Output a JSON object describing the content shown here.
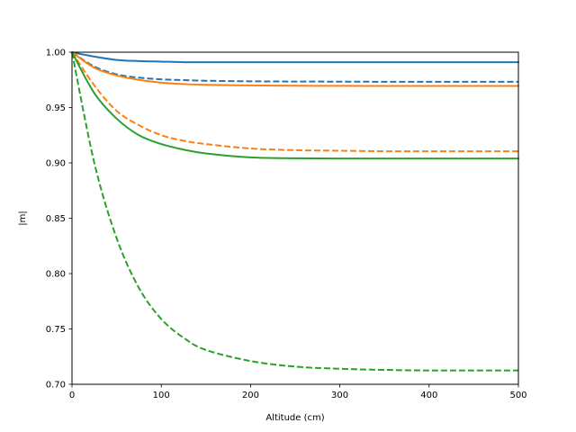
{
  "chart_data": {
    "type": "line",
    "title": "",
    "xlabel": "Altitude (cm)",
    "ylabel": "|m|",
    "xlim": [
      0,
      500
    ],
    "ylim": [
      0.7,
      1.0
    ],
    "xticks": [
      0,
      100,
      200,
      300,
      400,
      500
    ],
    "xtick_labels": [
      "0",
      "100",
      "200",
      "300",
      "400",
      "500"
    ],
    "yticks": [
      0.7,
      0.75,
      0.8,
      0.85,
      0.9,
      0.95,
      1.0
    ],
    "ytick_labels": [
      "0.70",
      "0.75",
      "0.80",
      "0.85",
      "0.90",
      "0.95",
      "1.00"
    ],
    "grid": false,
    "legend": "none",
    "x": [
      0,
      25,
      50,
      75,
      100,
      125,
      150,
      200,
      250,
      300,
      350,
      400,
      450,
      500
    ],
    "series": [
      {
        "color": "#1f77b4",
        "style": "solid",
        "values": [
          1.0,
          0.996,
          0.993,
          0.992,
          0.9915,
          0.991,
          0.991,
          0.991,
          0.991,
          0.991,
          0.991,
          0.991,
          0.991,
          0.991
        ]
      },
      {
        "color": "#1f77b4",
        "style": "dashed",
        "values": [
          1.0,
          0.987,
          0.98,
          0.977,
          0.9755,
          0.9748,
          0.9742,
          0.9737,
          0.9735,
          0.9734,
          0.9733,
          0.9733,
          0.9733,
          0.9733
        ]
      },
      {
        "color": "#ff7f0e",
        "style": "solid",
        "values": [
          1.0,
          0.986,
          0.979,
          0.975,
          0.9725,
          0.9712,
          0.9705,
          0.97,
          0.9697,
          0.9696,
          0.9695,
          0.9695,
          0.9695,
          0.9695
        ]
      },
      {
        "color": "#ff7f0e",
        "style": "dashed",
        "values": [
          1.0,
          0.97,
          0.947,
          0.934,
          0.925,
          0.92,
          0.917,
          0.913,
          0.9115,
          0.911,
          0.9105,
          0.9105,
          0.9105,
          0.9105
        ]
      },
      {
        "color": "#2ca02c",
        "style": "solid",
        "values": [
          1.0,
          0.963,
          0.94,
          0.925,
          0.917,
          0.912,
          0.9085,
          0.905,
          0.9042,
          0.904,
          0.904,
          0.904,
          0.904,
          0.904
        ]
      },
      {
        "color": "#2ca02c",
        "style": "dashed",
        "values": [
          1.0,
          0.9,
          0.832,
          0.787,
          0.759,
          0.742,
          0.731,
          0.721,
          0.716,
          0.714,
          0.713,
          0.7125,
          0.7125,
          0.7125
        ]
      }
    ]
  }
}
